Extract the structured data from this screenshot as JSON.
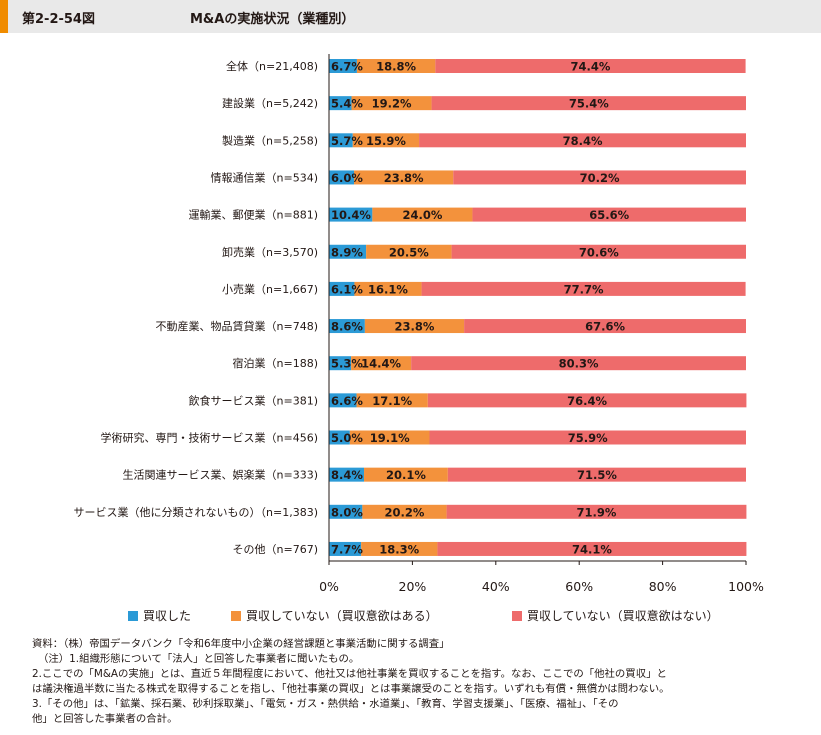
{
  "header": {
    "figure_number": "第2-2-54図",
    "title": "M&Aの実施状況（業種別）"
  },
  "colors": {
    "header_accent": "#f08c00",
    "header_bg": "#e9e9e9",
    "acquired": "#2b9ad6",
    "not_acquired_with_intent": "#f3923c",
    "not_acquired_no_intent": "#ee6b6b"
  },
  "legend": [
    {
      "label": "買収した",
      "color": "#2b9ad6"
    },
    {
      "label": "買収していない（買収意欲はある）",
      "color": "#f3923c"
    },
    {
      "label": "買収していない（買収意欲はない）",
      "color": "#ee6b6b"
    }
  ],
  "chart_data": {
    "type": "bar",
    "orientation": "horizontal",
    "stacked": true,
    "percent": true,
    "xlim": [
      0,
      100
    ],
    "xticks": [
      "0%",
      "20%",
      "40%",
      "60%",
      "80%",
      "100%"
    ],
    "grid": false,
    "legend_position": "bottom",
    "categories": [
      "全体（n=21,408)",
      "建設業（n=5,242)",
      "製造業（n=5,258)",
      "情報通信業（n=534)",
      "運輸業、郵便業（n=881)",
      "卸売業（n=3,570)",
      "小売業（n=1,667)",
      "不動産業、物品賃貸業（n=748)",
      "宿泊業（n=188)",
      "飲食サービス業（n=381)",
      "学術研究、専門・技術サービス業（n=456)",
      "生活関連サービス業、娯楽業（n=333)",
      "サービス業（他に分類されないもの）（n=1,383)",
      "その他（n=767)"
    ],
    "series": [
      {
        "name": "買収した",
        "color": "#2b9ad6",
        "values": [
          6.7,
          5.4,
          5.7,
          6.0,
          10.4,
          8.9,
          6.1,
          8.6,
          5.3,
          6.6,
          5.0,
          8.4,
          8.0,
          7.7
        ],
        "labels": [
          "6.7%",
          "5.4%",
          "5.7%",
          "6.0%",
          "10.4%",
          "8.9%",
          "6.1%",
          "8.6%",
          "5.3%",
          "6.6%",
          "5.0%",
          "8.4%",
          "8.0%",
          "7.7%"
        ]
      },
      {
        "name": "買収していない（買収意欲はある）",
        "color": "#f3923c",
        "values": [
          18.8,
          19.2,
          15.9,
          23.8,
          24.0,
          20.5,
          16.1,
          23.8,
          14.4,
          17.1,
          19.1,
          20.1,
          20.2,
          18.3
        ],
        "labels": [
          "18.8%",
          "19.2%",
          "15.9%",
          "23.8%",
          "24.0%",
          "20.5%",
          "16.1%",
          "23.8%",
          "14.4%",
          "17.1%",
          "19.1%",
          "20.1%",
          "20.2%",
          "18.3%"
        ]
      },
      {
        "name": "買収していない（買収意欲はない）",
        "color": "#ee6b6b",
        "values": [
          74.4,
          75.4,
          78.4,
          70.2,
          65.6,
          70.6,
          77.7,
          67.6,
          80.3,
          76.4,
          75.9,
          71.5,
          71.9,
          74.1
        ],
        "labels": [
          "74.4%",
          "75.4%",
          "78.4%",
          "70.2%",
          "65.6%",
          "70.6%",
          "77.7%",
          "67.6%",
          "80.3%",
          "76.4%",
          "75.9%",
          "71.5%",
          "71.9%",
          "74.1%"
        ]
      }
    ]
  },
  "notes": {
    "source": "資料：（株）帝国データバンク「令和6年度中小企業の経営課題と事業活動に関する調査」",
    "note1": "（注）1.組織形態について「法人」と回答した事業者に聞いたもの。",
    "note2_line1": "2.ここでの「M&Aの実施」とは、直近５年間程度において、他社又は他社事業を買収することを指す。なお、ここでの「他社の買収」と",
    "note2_line2": "は議決権過半数に当たる株式を取得することを指し、「他社事業の買収」とは事業譲受のことを指す。いずれも有償・無償かは問わない。",
    "note3_line1": "3.「その他」は、「鉱業、採石業、砂利採取業」、「電気・ガス・熱供給・水道業」、「教育、学習支援業」、「医療、福祉」、「その",
    "note3_line2": "他」と回答した事業者の合計。"
  }
}
